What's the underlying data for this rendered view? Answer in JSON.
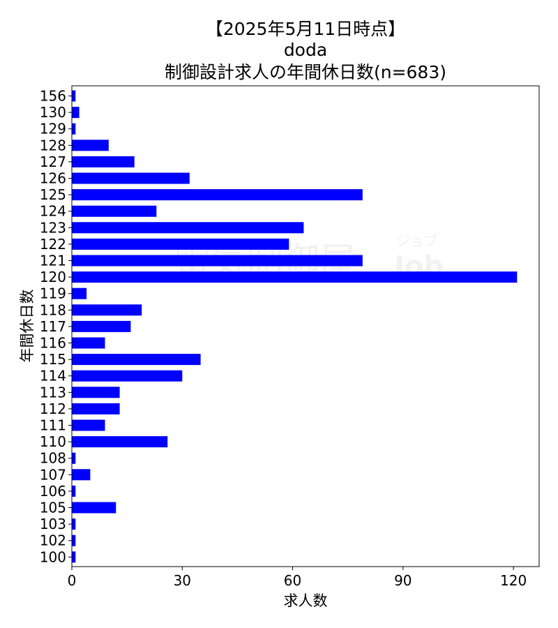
{
  "chart_data": {
    "type": "bar",
    "orientation": "horizontal",
    "title_lines": [
      "【2025年5月11日時点】",
      "doda",
      "制御設計求人の年間休日数(n=683)"
    ],
    "xlabel": "求人数",
    "ylabel": "年間休日数",
    "xlim": [
      0,
      127
    ],
    "xticks": [
      0,
      30,
      60,
      90,
      120
    ],
    "bar_color": "#0000ff",
    "grid": false,
    "categories": [
      "156",
      "130",
      "129",
      "128",
      "127",
      "126",
      "125",
      "124",
      "123",
      "122",
      "121",
      "120",
      "119",
      "118",
      "117",
      "116",
      "115",
      "114",
      "113",
      "112",
      "111",
      "110",
      "108",
      "107",
      "106",
      "105",
      "103",
      "102",
      "100"
    ],
    "values": [
      1,
      2,
      1,
      10,
      17,
      32,
      79,
      23,
      63,
      59,
      79,
      121,
      4,
      19,
      16,
      9,
      35,
      30,
      13,
      13,
      9,
      26,
      1,
      5,
      1,
      12,
      1,
      1,
      1
    ]
  },
  "watermark": {
    "text": "電気制御屋",
    "small_text": "ジョブ",
    "logo_text": "Job"
  }
}
